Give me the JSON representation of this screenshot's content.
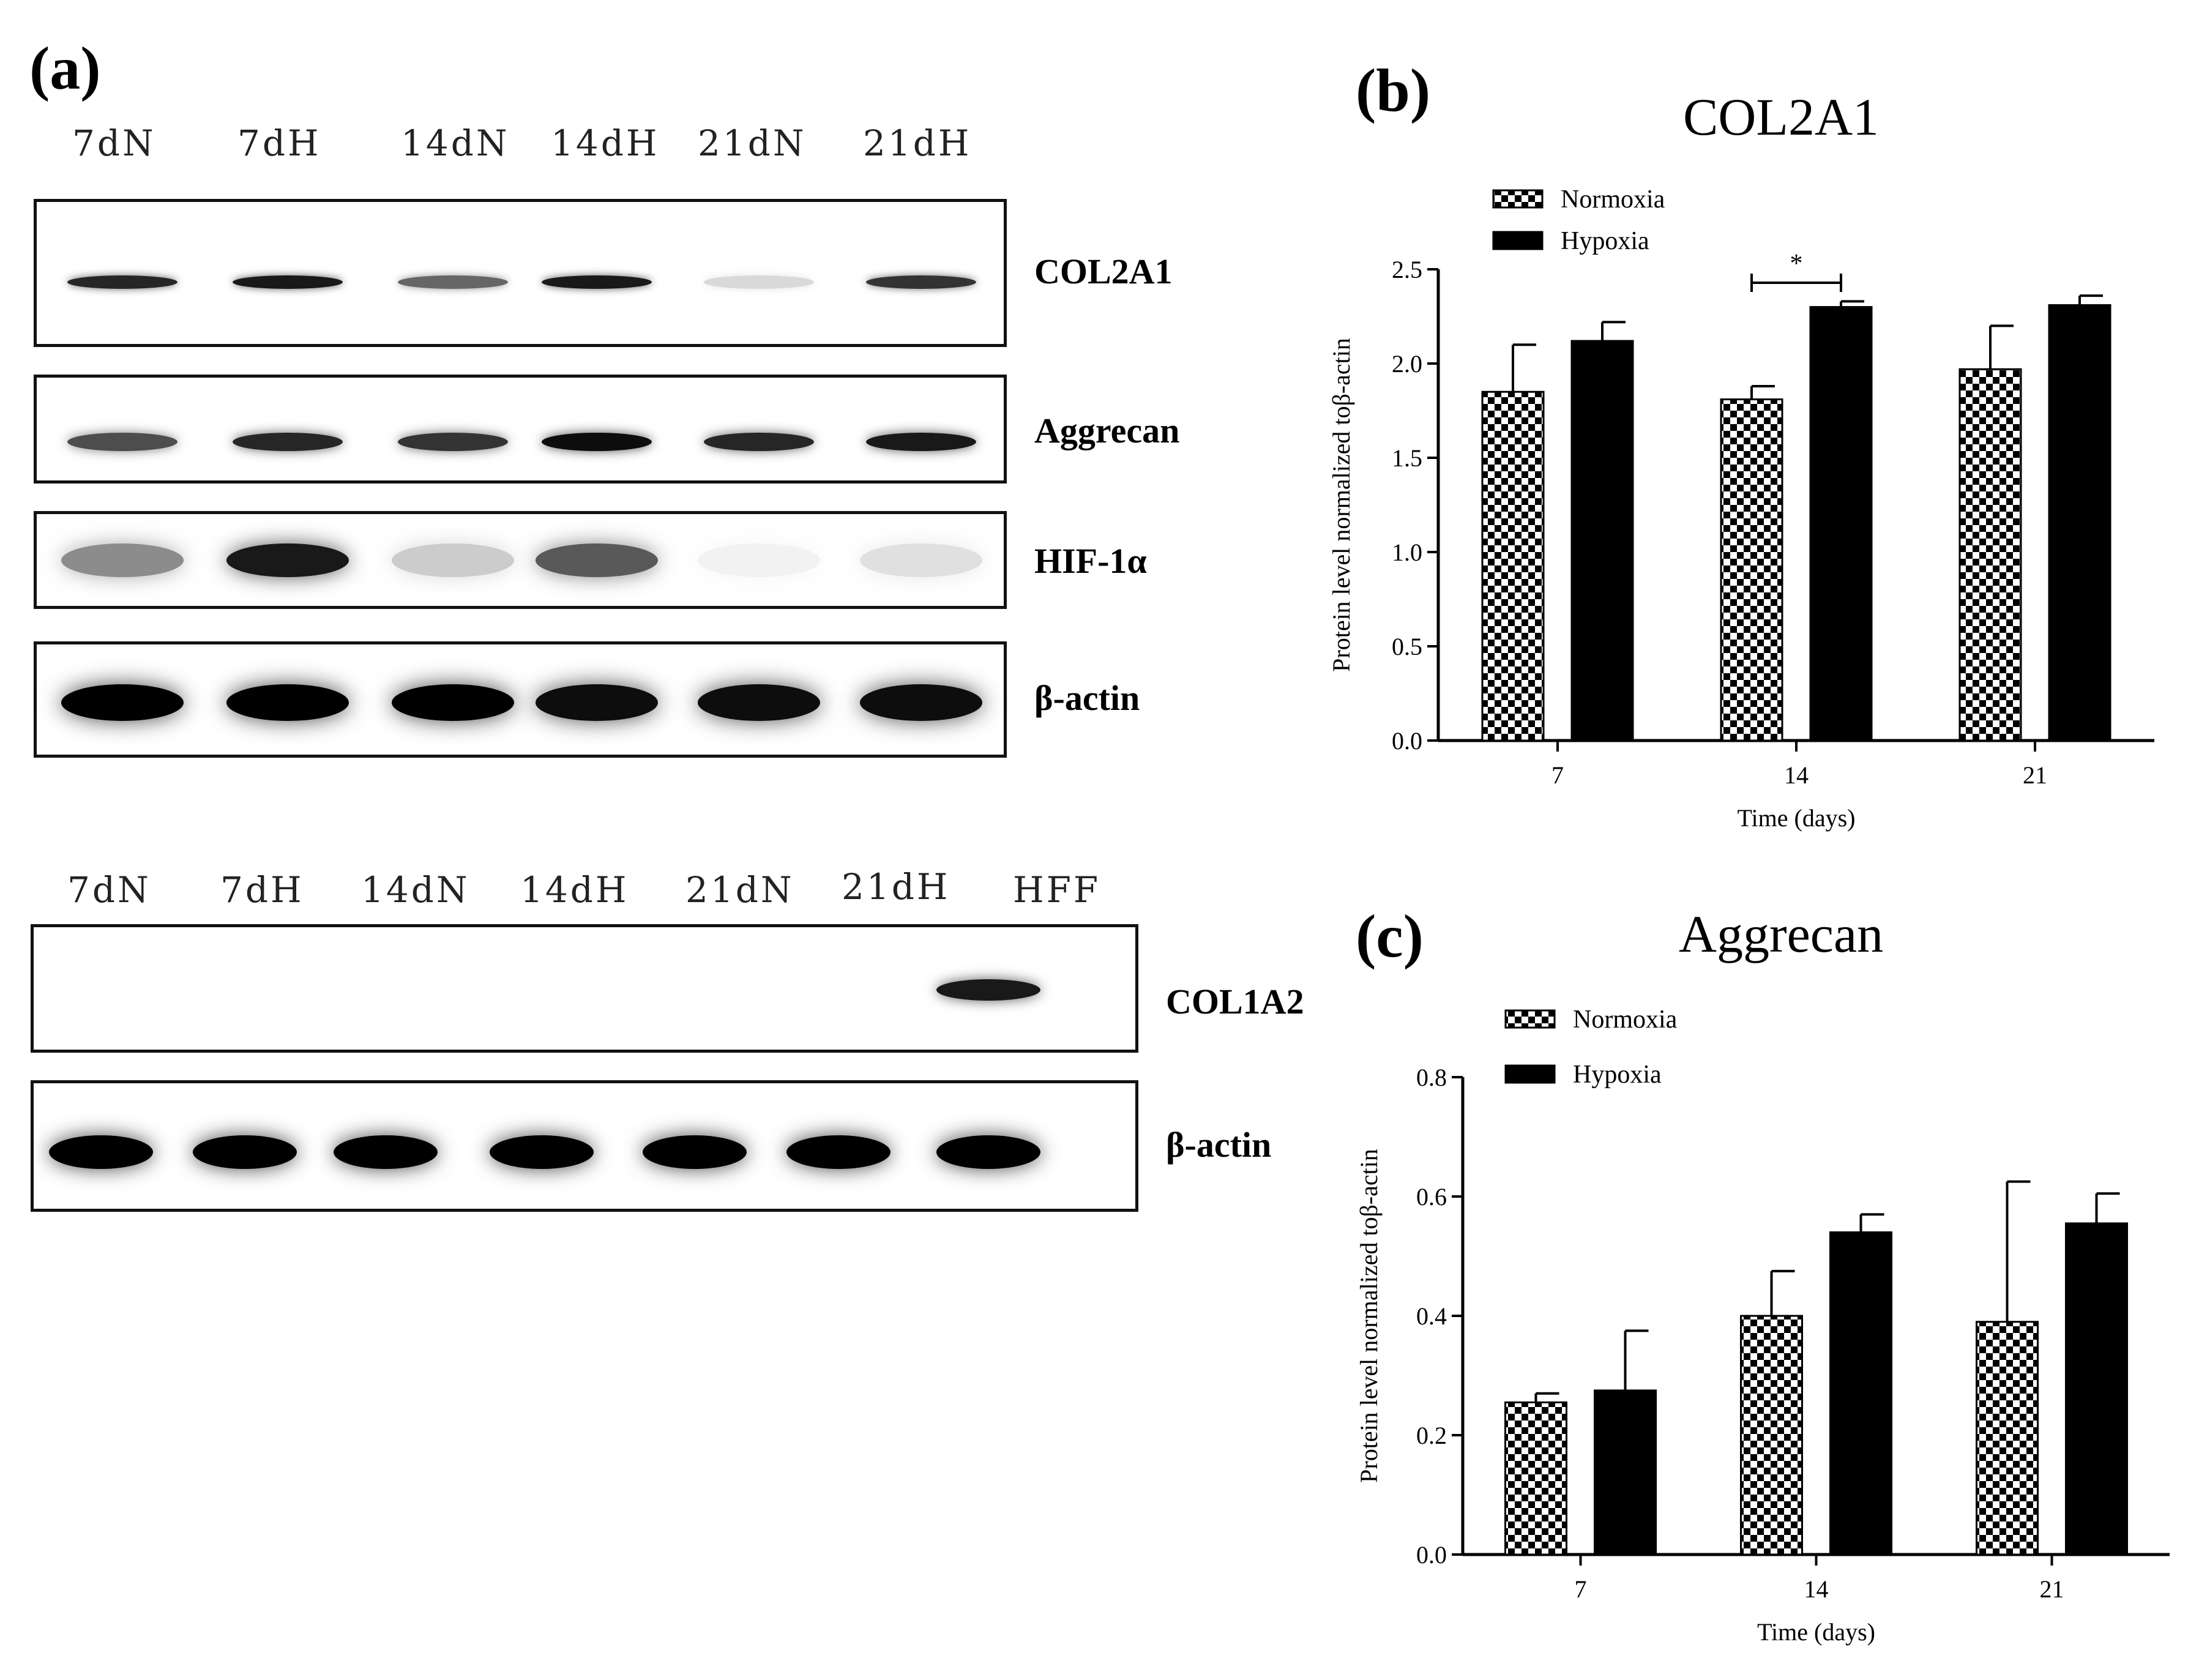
{
  "panel_a": {
    "label": "(a)",
    "top_lanes": [
      "7dN",
      "7dH",
      "14dN",
      "14dH",
      "21dN",
      "21dH"
    ],
    "top_blots": [
      {
        "name": "COL2A1",
        "label": "COL2A1",
        "intensities": [
          0.85,
          0.9,
          0.6,
          0.9,
          0.15,
          0.8
        ]
      },
      {
        "name": "Aggrecan",
        "label": "Aggrecan",
        "intensities": [
          0.7,
          0.85,
          0.8,
          0.95,
          0.85,
          0.9
        ]
      },
      {
        "name": "HIF-1a",
        "label": "HIF-1α",
        "intensities": [
          0.45,
          0.9,
          0.2,
          0.65,
          0.05,
          0.12
        ]
      },
      {
        "name": "beta-actin",
        "label": "β-actin",
        "intensities": [
          1.0,
          1.0,
          1.0,
          0.95,
          0.95,
          0.95
        ]
      }
    ],
    "bottom_lanes": [
      "7dN",
      "7dH",
      "14dN",
      "14dH",
      "21dN",
      "21dH",
      "HFF"
    ],
    "bottom_blots": [
      {
        "name": "COL1A2",
        "label": "COL1A2",
        "intensities": [
          0,
          0,
          0,
          0,
          0,
          0,
          0.9
        ]
      },
      {
        "name": "beta-actin-2",
        "label": "β-actin",
        "intensities": [
          1.0,
          1.0,
          1.0,
          1.0,
          1.0,
          1.0,
          1.0
        ]
      }
    ]
  },
  "panel_b": {
    "label": "(b)"
  },
  "panel_c": {
    "label": "(c)"
  },
  "chart_data": [
    {
      "type": "bar",
      "title": "COL2A1",
      "xlabel": "Time (days)",
      "ylabel": "Protein level normalized toβ-actin",
      "categories": [
        "7",
        "14",
        "21"
      ],
      "ylim": [
        0,
        2.5
      ],
      "yticks": [
        "0.0",
        "0.5",
        "1.0",
        "1.5",
        "2.0",
        "2.5"
      ],
      "legend_position": "top-left",
      "series": [
        {
          "name": "Normoxia",
          "values": [
            1.85,
            1.81,
            1.97
          ],
          "errors": [
            0.25,
            0.07,
            0.23
          ],
          "fill": "checkered"
        },
        {
          "name": "Hypoxia",
          "values": [
            2.12,
            2.3,
            2.31
          ],
          "errors": [
            0.1,
            0.03,
            0.05
          ],
          "fill": "#000000"
        }
      ],
      "annotations": [
        {
          "text": "*",
          "category": "14"
        }
      ]
    },
    {
      "type": "bar",
      "title": "Aggrecan",
      "xlabel": "Time (days)",
      "ylabel": "Protein level normalized toβ-actin",
      "categories": [
        "7",
        "14",
        "21"
      ],
      "ylim": [
        0,
        0.8
      ],
      "yticks": [
        "0.0",
        "0.2",
        "0.4",
        "0.6",
        "0.8"
      ],
      "legend_position": "top-left",
      "series": [
        {
          "name": "Normoxia",
          "values": [
            0.255,
            0.4,
            0.39
          ],
          "errors": [
            0.015,
            0.075,
            0.235
          ],
          "fill": "checkered"
        },
        {
          "name": "Hypoxia",
          "values": [
            0.275,
            0.54,
            0.555
          ],
          "errors": [
            0.1,
            0.03,
            0.05
          ],
          "fill": "#000000"
        }
      ]
    }
  ]
}
